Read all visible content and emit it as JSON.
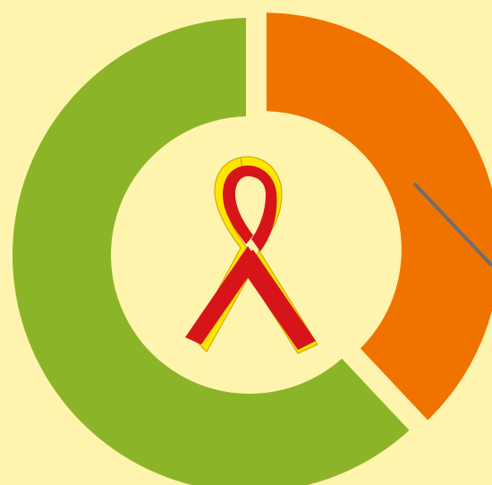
{
  "colors": {
    "background": "#FFF4AE",
    "ribbon_red": "#D7141A",
    "ribbon_yellow": "#FFE500",
    "leader_line": "#6E6E6E"
  },
  "ribbon": {
    "icon": "awareness-ribbon-icon",
    "colors": [
      "red",
      "yellow"
    ]
  },
  "chart_data": {
    "type": "pie",
    "variant": "donut",
    "title": "",
    "legend": "none",
    "slices": [
      {
        "value": 38,
        "color": "#F07300",
        "exploded": true
      },
      {
        "value": 62,
        "color": "#8CB428",
        "exploded": false
      }
    ]
  }
}
